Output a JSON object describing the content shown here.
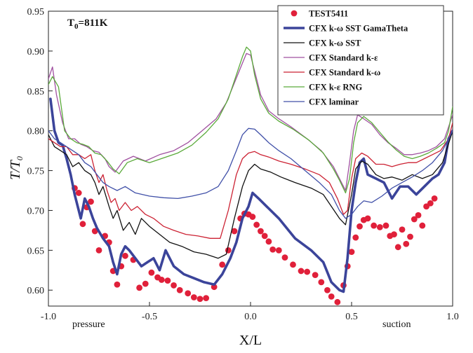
{
  "chart_data": {
    "type": "line",
    "title": "T0=811K",
    "title_main": "T",
    "title_sub": "0",
    "title_rest": "=811K",
    "xlabel": "X/L",
    "ylabel": "T/T",
    "ylabel_sub": "0",
    "xlim": [
      -1.0,
      1.0
    ],
    "ylim": [
      0.58,
      0.95
    ],
    "xticks": [
      -1.0,
      -0.5,
      0.0,
      0.5,
      1.0
    ],
    "xtick_labels": [
      "-1.0",
      "-0.5",
      "0.0",
      "0.5",
      "1.0"
    ],
    "yticks": [
      0.6,
      0.65,
      0.7,
      0.75,
      0.8,
      0.85,
      0.9,
      0.95
    ],
    "ytick_labels": [
      "0.60",
      "0.65",
      "0.70",
      "0.75",
      "0.80",
      "0.85",
      "0.90",
      "0.95"
    ],
    "annotations": [
      "pressure",
      "suction"
    ],
    "legend_position": "top-right",
    "series": [
      {
        "name": "TEST5411",
        "color": "#e0203a",
        "style": "markers",
        "x": [
          -0.87,
          -0.85,
          -0.83,
          -0.81,
          -0.79,
          -0.77,
          -0.75,
          -0.72,
          -0.7,
          -0.68,
          -0.66,
          -0.64,
          -0.62,
          -0.58,
          -0.55,
          -0.52,
          -0.49,
          -0.46,
          -0.44,
          -0.41,
          -0.38,
          -0.35,
          -0.31,
          -0.28,
          -0.25,
          -0.22,
          -0.18,
          -0.14,
          -0.11,
          -0.08,
          -0.05,
          -0.03,
          -0.01,
          0.01,
          0.03,
          0.05,
          0.07,
          0.09,
          0.11,
          0.14,
          0.17,
          0.21,
          0.25,
          0.28,
          0.32,
          0.35,
          0.38,
          0.4,
          0.43,
          0.46,
          0.48,
          0.5,
          0.52,
          0.54,
          0.56,
          0.58,
          0.61,
          0.64,
          0.67,
          0.69,
          0.71,
          0.73,
          0.75,
          0.77,
          0.79,
          0.81,
          0.83,
          0.85,
          0.87,
          0.89,
          0.91
        ],
        "values": [
          0.728,
          0.722,
          0.683,
          0.704,
          0.711,
          0.674,
          0.65,
          0.668,
          0.66,
          0.624,
          0.607,
          0.63,
          0.643,
          0.638,
          0.603,
          0.608,
          0.622,
          0.616,
          0.613,
          0.612,
          0.606,
          0.6,
          0.596,
          0.591,
          0.589,
          0.59,
          0.604,
          0.632,
          0.65,
          0.674,
          0.69,
          0.696,
          0.695,
          0.692,
          0.682,
          0.674,
          0.668,
          0.661,
          0.651,
          0.65,
          0.641,
          0.632,
          0.624,
          0.623,
          0.619,
          0.61,
          0.6,
          0.592,
          0.585,
          0.606,
          0.63,
          0.648,
          0.666,
          0.68,
          0.688,
          0.69,
          0.681,
          0.679,
          0.681,
          0.668,
          0.67,
          0.654,
          0.676,
          0.658,
          0.667,
          0.689,
          0.694,
          0.681,
          0.705,
          0.709,
          0.715
        ]
      },
      {
        "name": "CFX k-ω SST GamaTheta",
        "color": "#3b449a",
        "style": "thick",
        "x": [
          -0.99,
          -0.97,
          -0.95,
          -0.93,
          -0.91,
          -0.89,
          -0.87,
          -0.84,
          -0.82,
          -0.8,
          -0.78,
          -0.76,
          -0.73,
          -0.7,
          -0.68,
          -0.66,
          -0.64,
          -0.62,
          -0.6,
          -0.57,
          -0.54,
          -0.51,
          -0.48,
          -0.45,
          -0.42,
          -0.38,
          -0.33,
          -0.28,
          -0.23,
          -0.18,
          -0.14,
          -0.1,
          -0.07,
          -0.04,
          -0.01,
          0.01,
          0.04,
          0.08,
          0.14,
          0.22,
          0.3,
          0.36,
          0.4,
          0.44,
          0.46,
          0.48,
          0.5,
          0.52,
          0.54,
          0.56,
          0.58,
          0.62,
          0.66,
          0.7,
          0.74,
          0.78,
          0.82,
          0.86,
          0.9,
          0.93,
          0.96,
          0.98,
          1.0
        ],
        "values": [
          0.84,
          0.8,
          0.785,
          0.782,
          0.765,
          0.745,
          0.72,
          0.69,
          0.715,
          0.705,
          0.69,
          0.678,
          0.665,
          0.655,
          0.635,
          0.62,
          0.645,
          0.655,
          0.65,
          0.64,
          0.63,
          0.635,
          0.64,
          0.625,
          0.65,
          0.63,
          0.62,
          0.615,
          0.61,
          0.607,
          0.62,
          0.64,
          0.66,
          0.69,
          0.705,
          0.722,
          0.715,
          0.705,
          0.69,
          0.665,
          0.65,
          0.635,
          0.61,
          0.6,
          0.598,
          0.64,
          0.7,
          0.735,
          0.76,
          0.765,
          0.745,
          0.74,
          0.735,
          0.715,
          0.73,
          0.73,
          0.72,
          0.73,
          0.74,
          0.745,
          0.76,
          0.79,
          0.8
        ]
      },
      {
        "name": "CFX k-ω SST",
        "color": "#111111",
        "style": "thin",
        "x": [
          -1.0,
          -0.97,
          -0.94,
          -0.91,
          -0.88,
          -0.85,
          -0.82,
          -0.79,
          -0.77,
          -0.75,
          -0.73,
          -0.7,
          -0.68,
          -0.66,
          -0.63,
          -0.6,
          -0.57,
          -0.54,
          -0.5,
          -0.45,
          -0.4,
          -0.34,
          -0.28,
          -0.22,
          -0.16,
          -0.12,
          -0.08,
          -0.04,
          -0.01,
          0.02,
          0.05,
          0.1,
          0.15,
          0.22,
          0.3,
          0.36,
          0.4,
          0.44,
          0.47,
          0.5,
          0.52,
          0.55,
          0.58,
          0.62,
          0.66,
          0.7,
          0.75,
          0.8,
          0.85,
          0.9,
          0.95,
          1.0
        ],
        "values": [
          0.795,
          0.78,
          0.775,
          0.77,
          0.755,
          0.76,
          0.75,
          0.745,
          0.735,
          0.72,
          0.73,
          0.705,
          0.69,
          0.7,
          0.675,
          0.685,
          0.67,
          0.69,
          0.68,
          0.67,
          0.66,
          0.655,
          0.648,
          0.645,
          0.64,
          0.645,
          0.69,
          0.73,
          0.75,
          0.758,
          0.752,
          0.748,
          0.742,
          0.735,
          0.728,
          0.72,
          0.705,
          0.69,
          0.682,
          0.72,
          0.752,
          0.762,
          0.758,
          0.745,
          0.74,
          0.742,
          0.738,
          0.745,
          0.74,
          0.745,
          0.76,
          0.8
        ]
      },
      {
        "name": "CFX Standard k-ε",
        "color": "#a050a0",
        "style": "thin",
        "x": [
          -1.0,
          -0.98,
          -0.96,
          -0.93,
          -0.9,
          -0.87,
          -0.84,
          -0.81,
          -0.78,
          -0.75,
          -0.72,
          -0.7,
          -0.67,
          -0.63,
          -0.58,
          -0.52,
          -0.45,
          -0.38,
          -0.31,
          -0.24,
          -0.17,
          -0.12,
          -0.08,
          -0.04,
          -0.02,
          0.0,
          0.02,
          0.05,
          0.09,
          0.14,
          0.2,
          0.28,
          0.35,
          0.41,
          0.44,
          0.47,
          0.49,
          0.51,
          0.53,
          0.56,
          0.6,
          0.64,
          0.68,
          0.72,
          0.76,
          0.8,
          0.84,
          0.88,
          0.92,
          0.96,
          1.0
        ],
        "values": [
          0.865,
          0.88,
          0.845,
          0.81,
          0.79,
          0.79,
          0.783,
          0.78,
          0.775,
          0.773,
          0.765,
          0.755,
          0.748,
          0.762,
          0.768,
          0.762,
          0.77,
          0.775,
          0.785,
          0.8,
          0.815,
          0.835,
          0.86,
          0.885,
          0.897,
          0.895,
          0.875,
          0.845,
          0.825,
          0.815,
          0.805,
          0.79,
          0.775,
          0.755,
          0.74,
          0.725,
          0.76,
          0.8,
          0.82,
          0.815,
          0.808,
          0.795,
          0.785,
          0.778,
          0.77,
          0.77,
          0.772,
          0.775,
          0.78,
          0.79,
          0.82
        ]
      },
      {
        "name": "CFX Standard k-ω",
        "color": "#cc2233",
        "style": "thin",
        "x": [
          -1.0,
          -0.97,
          -0.94,
          -0.91,
          -0.88,
          -0.85,
          -0.82,
          -0.79,
          -0.77,
          -0.75,
          -0.73,
          -0.71,
          -0.69,
          -0.67,
          -0.65,
          -0.62,
          -0.59,
          -0.56,
          -0.52,
          -0.48,
          -0.43,
          -0.38,
          -0.32,
          -0.26,
          -0.2,
          -0.15,
          -0.11,
          -0.07,
          -0.04,
          -0.01,
          0.02,
          0.05,
          0.09,
          0.14,
          0.2,
          0.27,
          0.34,
          0.39,
          0.43,
          0.46,
          0.48,
          0.5,
          0.52,
          0.55,
          0.58,
          0.62,
          0.66,
          0.7,
          0.74,
          0.78,
          0.82,
          0.86,
          0.9,
          0.94,
          0.98,
          1.0
        ],
        "values": [
          0.79,
          0.785,
          0.78,
          0.78,
          0.77,
          0.77,
          0.765,
          0.77,
          0.75,
          0.735,
          0.745,
          0.725,
          0.71,
          0.715,
          0.7,
          0.71,
          0.7,
          0.705,
          0.695,
          0.69,
          0.68,
          0.675,
          0.67,
          0.668,
          0.665,
          0.665,
          0.7,
          0.745,
          0.765,
          0.772,
          0.774,
          0.77,
          0.767,
          0.762,
          0.758,
          0.752,
          0.745,
          0.735,
          0.715,
          0.695,
          0.7,
          0.74,
          0.765,
          0.772,
          0.768,
          0.758,
          0.758,
          0.755,
          0.758,
          0.76,
          0.76,
          0.765,
          0.77,
          0.775,
          0.79,
          0.81
        ]
      },
      {
        "name": "CFX k-ε RNG",
        "color": "#5aaa3a",
        "style": "thin",
        "x": [
          -1.0,
          -0.98,
          -0.95,
          -0.92,
          -0.89,
          -0.86,
          -0.83,
          -0.8,
          -0.77,
          -0.74,
          -0.71,
          -0.68,
          -0.65,
          -0.61,
          -0.56,
          -0.5,
          -0.43,
          -0.36,
          -0.29,
          -0.22,
          -0.16,
          -0.11,
          -0.07,
          -0.04,
          -0.02,
          0.0,
          0.02,
          0.05,
          0.09,
          0.14,
          0.21,
          0.29,
          0.36,
          0.41,
          0.44,
          0.47,
          0.49,
          0.51,
          0.53,
          0.56,
          0.6,
          0.64,
          0.68,
          0.72,
          0.76,
          0.8,
          0.84,
          0.88,
          0.92,
          0.96,
          0.98,
          1.0
        ],
        "values": [
          0.858,
          0.868,
          0.855,
          0.8,
          0.79,
          0.785,
          0.783,
          0.78,
          0.772,
          0.77,
          0.762,
          0.752,
          0.746,
          0.76,
          0.765,
          0.76,
          0.766,
          0.772,
          0.782,
          0.798,
          0.815,
          0.84,
          0.87,
          0.893,
          0.905,
          0.9,
          0.87,
          0.84,
          0.822,
          0.812,
          0.802,
          0.788,
          0.772,
          0.752,
          0.738,
          0.722,
          0.74,
          0.785,
          0.81,
          0.818,
          0.81,
          0.798,
          0.786,
          0.776,
          0.768,
          0.765,
          0.768,
          0.772,
          0.778,
          0.785,
          0.8,
          0.83
        ]
      },
      {
        "name": "CFX laminar",
        "color": "#4050a8",
        "style": "thin",
        "x": [
          -1.0,
          -0.97,
          -0.94,
          -0.91,
          -0.88,
          -0.85,
          -0.82,
          -0.79,
          -0.76,
          -0.73,
          -0.7,
          -0.66,
          -0.62,
          -0.57,
          -0.5,
          -0.43,
          -0.36,
          -0.29,
          -0.22,
          -0.16,
          -0.11,
          -0.07,
          -0.04,
          -0.01,
          0.02,
          0.05,
          0.09,
          0.14,
          0.2,
          0.27,
          0.34,
          0.4,
          0.44,
          0.47,
          0.5,
          0.53,
          0.56,
          0.6,
          0.65,
          0.7,
          0.75,
          0.8,
          0.85,
          0.9,
          0.95,
          1.0
        ],
        "values": [
          0.8,
          0.79,
          0.785,
          0.78,
          0.775,
          0.77,
          0.76,
          0.755,
          0.745,
          0.735,
          0.73,
          0.725,
          0.73,
          0.722,
          0.718,
          0.716,
          0.715,
          0.718,
          0.722,
          0.73,
          0.75,
          0.775,
          0.795,
          0.803,
          0.802,
          0.795,
          0.785,
          0.775,
          0.765,
          0.75,
          0.735,
          0.72,
          0.7,
          0.69,
          0.695,
          0.705,
          0.712,
          0.71,
          0.718,
          0.728,
          0.735,
          0.742,
          0.75,
          0.76,
          0.775,
          0.8
        ]
      }
    ]
  }
}
